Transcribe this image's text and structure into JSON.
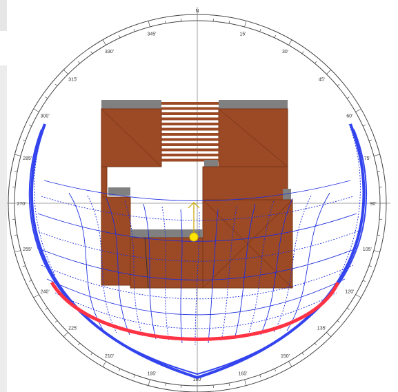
{
  "compass": {
    "north_label": "N",
    "bearing_labels": [
      "15'",
      "30'",
      "45'",
      "60'",
      "75'",
      "90'",
      "105'",
      "120'",
      "135'",
      "150'",
      "165'",
      "180'",
      "195'",
      "210'",
      "225'",
      "240'",
      "255'",
      "270'",
      "285'",
      "300'",
      "315'",
      "330'",
      "345'"
    ]
  },
  "colors": {
    "roof": "#9b4a25",
    "roof_edge": "#7a3517",
    "parapet": "#808080",
    "sun_path": "#1f2fe0",
    "summer_band": "#3344ee",
    "winter_band": "#ff3344",
    "sun": "#ffe600",
    "compass_line": "#444444"
  },
  "icons": {
    "sun": "sun-marker-icon",
    "north_arrow": "north-arrow-icon"
  }
}
